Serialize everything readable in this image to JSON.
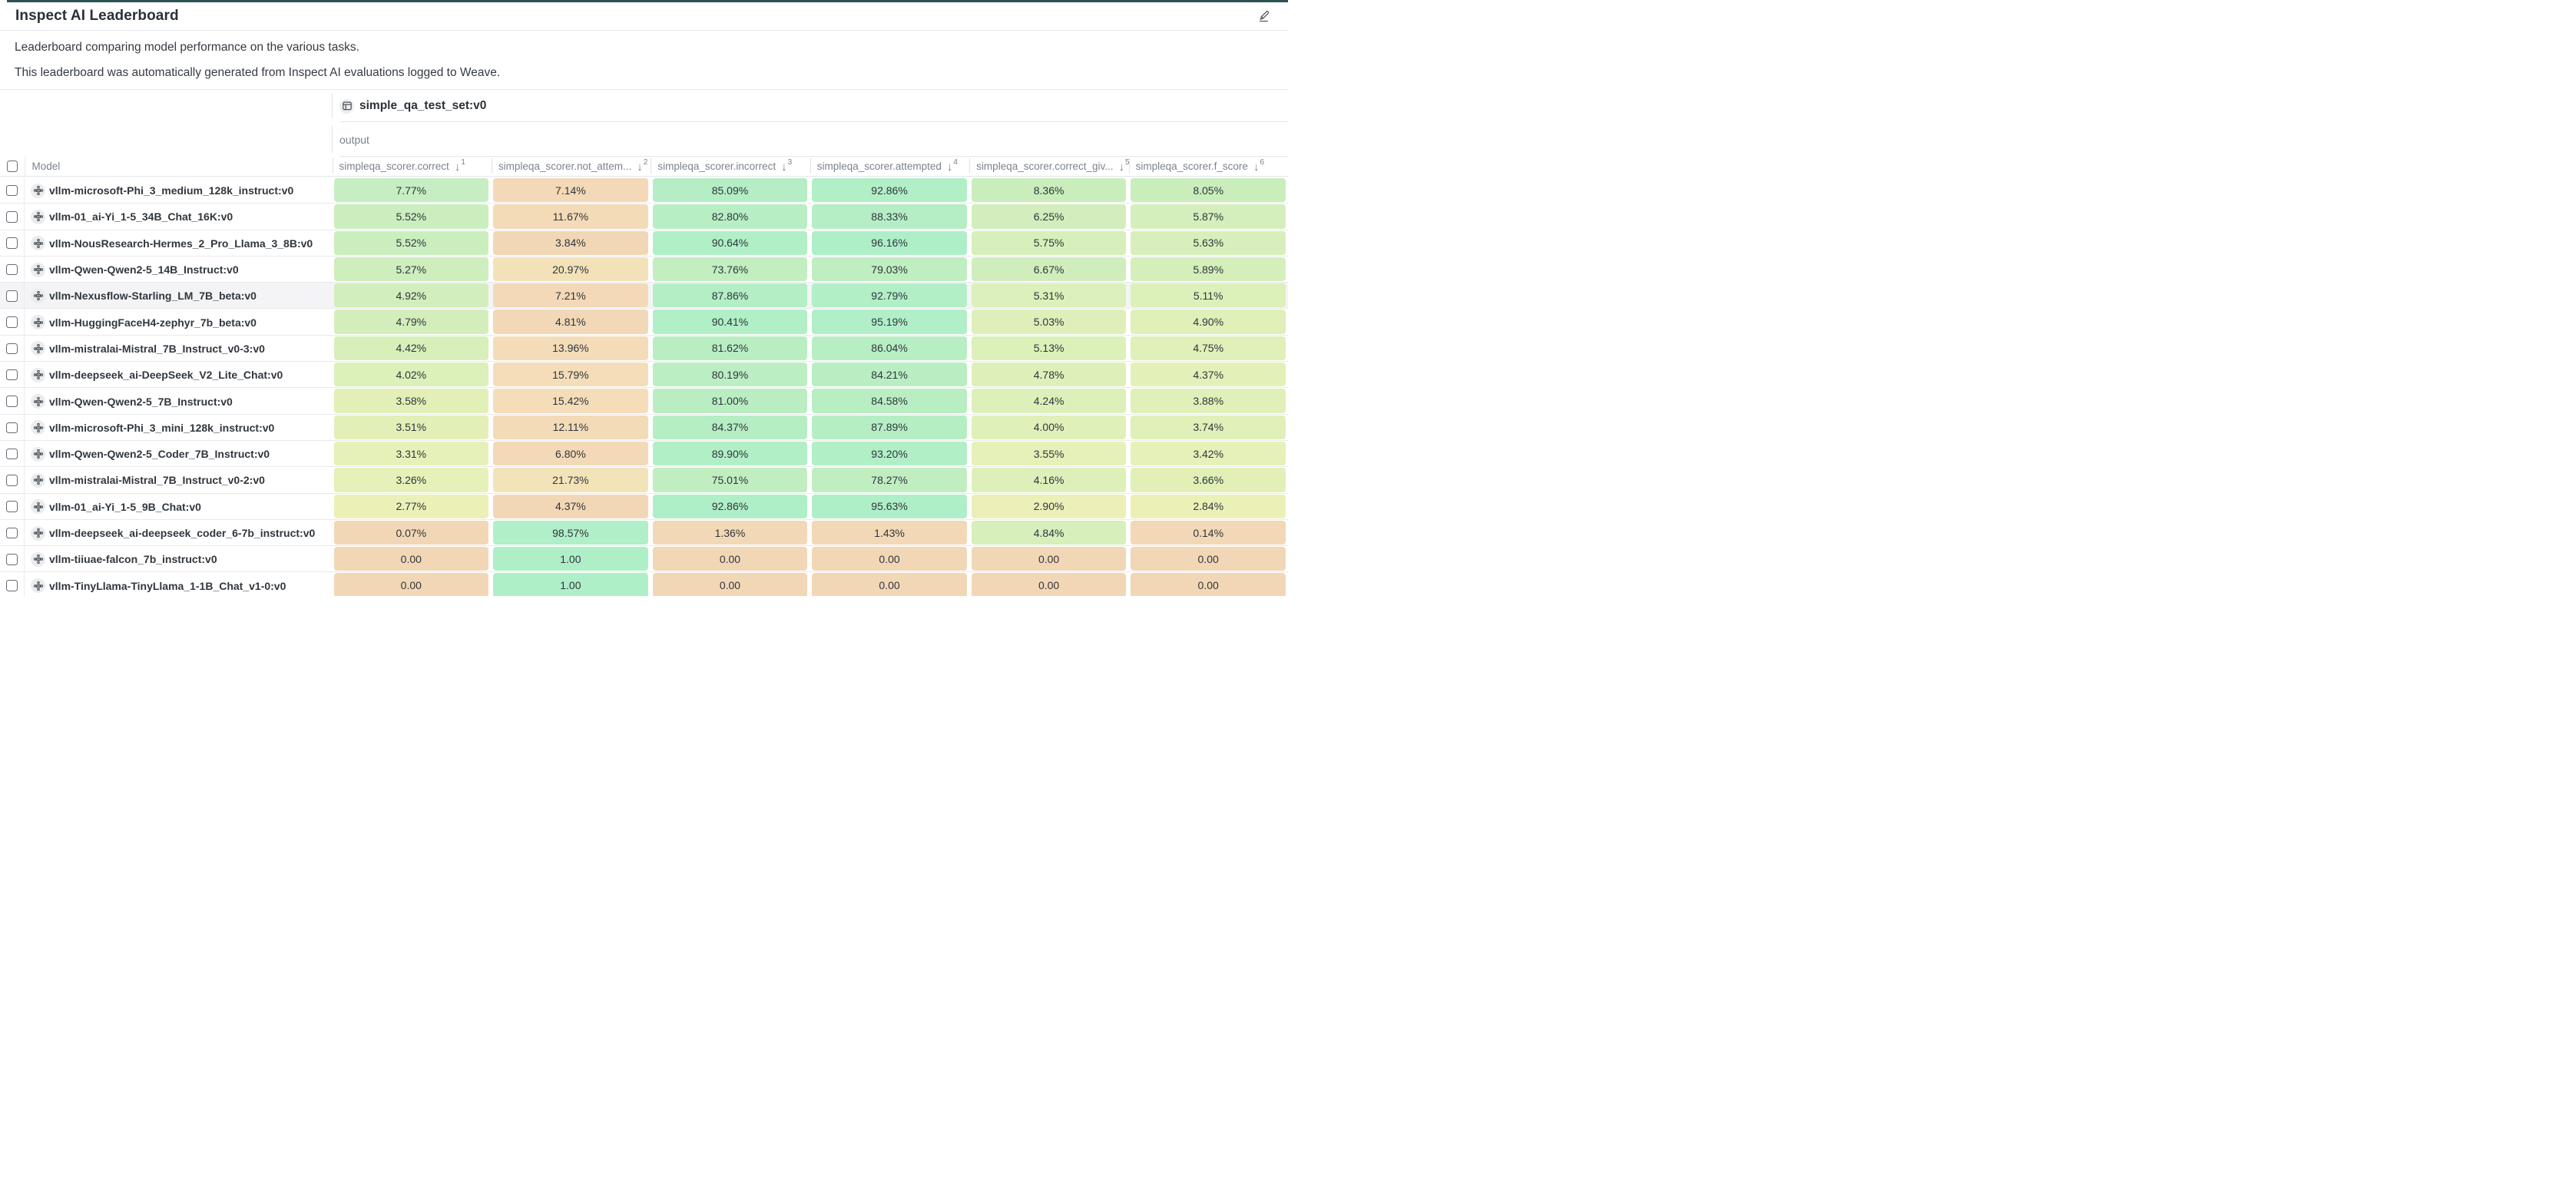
{
  "header": {
    "title": "Inspect AI Leaderboard",
    "edit_icon": "pencil-icon"
  },
  "intro": {
    "line1": "Leaderboard comparing model performance on the various tasks.",
    "line2": "This leaderboard was automatically generated from Inspect AI evaluations logged to Weave."
  },
  "table": {
    "group_header": {
      "icon": "dataset-icon",
      "label": "simple_qa_test_set:v0"
    },
    "output_label": "output",
    "model_header": "Model",
    "columns": [
      {
        "label": "simpleqa_scorer.correct",
        "sort_dir": "desc",
        "sort_order": "1"
      },
      {
        "label": "simpleqa_scorer.not_attem...",
        "sort_dir": "desc",
        "sort_order": "2"
      },
      {
        "label": "simpleqa_scorer.incorrect",
        "sort_dir": "desc",
        "sort_order": "3"
      },
      {
        "label": "simpleqa_scorer.attempted",
        "sort_dir": "desc",
        "sort_order": "4"
      },
      {
        "label": "simpleqa_scorer.correct_giv...",
        "sort_dir": "desc",
        "sort_order": "5"
      },
      {
        "label": "simpleqa_scorer.f_score",
        "sort_dir": "desc",
        "sort_order": "6"
      }
    ],
    "rows": [
      {
        "model": "vllm-microsoft-Phi_3_medium_128k_instruct:v0",
        "values": [
          "7.77%",
          "7.14%",
          "85.09%",
          "92.86%",
          "8.36%",
          "8.05%"
        ],
        "hover": false
      },
      {
        "model": "vllm-01_ai-Yi_1-5_34B_Chat_16K:v0",
        "values": [
          "5.52%",
          "11.67%",
          "82.80%",
          "88.33%",
          "6.25%",
          "5.87%"
        ],
        "hover": false
      },
      {
        "model": "vllm-NousResearch-Hermes_2_Pro_Llama_3_8B:v0",
        "values": [
          "5.52%",
          "3.84%",
          "90.64%",
          "96.16%",
          "5.75%",
          "5.63%"
        ],
        "hover": false
      },
      {
        "model": "vllm-Qwen-Qwen2-5_14B_Instruct:v0",
        "values": [
          "5.27%",
          "20.97%",
          "73.76%",
          "79.03%",
          "6.67%",
          "5.89%"
        ],
        "hover": false
      },
      {
        "model": "vllm-Nexusflow-Starling_LM_7B_beta:v0",
        "values": [
          "4.92%",
          "7.21%",
          "87.86%",
          "92.79%",
          "5.31%",
          "5.11%"
        ],
        "hover": true
      },
      {
        "model": "vllm-HuggingFaceH4-zephyr_7b_beta:v0",
        "values": [
          "4.79%",
          "4.81%",
          "90.41%",
          "95.19%",
          "5.03%",
          "4.90%"
        ],
        "hover": false
      },
      {
        "model": "vllm-mistralai-Mistral_7B_Instruct_v0-3:v0",
        "values": [
          "4.42%",
          "13.96%",
          "81.62%",
          "86.04%",
          "5.13%",
          "4.75%"
        ],
        "hover": false
      },
      {
        "model": "vllm-deepseek_ai-DeepSeek_V2_Lite_Chat:v0",
        "values": [
          "4.02%",
          "15.79%",
          "80.19%",
          "84.21%",
          "4.78%",
          "4.37%"
        ],
        "hover": false
      },
      {
        "model": "vllm-Qwen-Qwen2-5_7B_Instruct:v0",
        "values": [
          "3.58%",
          "15.42%",
          "81.00%",
          "84.58%",
          "4.24%",
          "3.88%"
        ],
        "hover": false
      },
      {
        "model": "vllm-microsoft-Phi_3_mini_128k_instruct:v0",
        "values": [
          "3.51%",
          "12.11%",
          "84.37%",
          "87.89%",
          "4.00%",
          "3.74%"
        ],
        "hover": false
      },
      {
        "model": "vllm-Qwen-Qwen2-5_Coder_7B_Instruct:v0",
        "values": [
          "3.31%",
          "6.80%",
          "89.90%",
          "93.20%",
          "3.55%",
          "3.42%"
        ],
        "hover": false
      },
      {
        "model": "vllm-mistralai-Mistral_7B_Instruct_v0-2:v0",
        "values": [
          "3.26%",
          "21.73%",
          "75.01%",
          "78.27%",
          "4.16%",
          "3.66%"
        ],
        "hover": false
      },
      {
        "model": "vllm-01_ai-Yi_1-5_9B_Chat:v0",
        "values": [
          "2.77%",
          "4.37%",
          "92.86%",
          "95.63%",
          "2.90%",
          "2.84%"
        ],
        "hover": false
      },
      {
        "model": "vllm-deepseek_ai-deepseek_coder_6-7b_instruct:v0",
        "values": [
          "0.07%",
          "98.57%",
          "1.36%",
          "1.43%",
          "4.84%",
          "0.14%"
        ],
        "hover": false
      },
      {
        "model": "vllm-tiiuae-falcon_7b_instruct:v0",
        "values": [
          "0.00",
          "1.00",
          "0.00",
          "0.00",
          "0.00",
          "0.00"
        ],
        "hover": false
      },
      {
        "model": "vllm-TinyLlama-TinyLlama_1-1B_Chat_v1-0:v0",
        "values": [
          "0.00",
          "1.00",
          "0.00",
          "0.00",
          "0.00",
          "0.00"
        ],
        "hover": false
      }
    ]
  },
  "colors": {
    "topbar_accent": "#2b5355",
    "row_hover": "#f4f4f6",
    "cell_text": "#2f353c",
    "colormap_stops": [
      [
        0.0,
        242,
        215,
        182
      ],
      [
        0.12,
        244,
        221,
        184
      ],
      [
        0.25,
        242,
        232,
        186
      ],
      [
        0.37,
        234,
        241,
        183
      ],
      [
        0.5,
        222,
        240,
        185
      ],
      [
        0.65,
        209,
        238,
        188
      ],
      [
        0.8,
        193,
        238,
        192
      ],
      [
        0.92,
        181,
        238,
        196
      ],
      [
        1.0,
        175,
        239,
        200
      ]
    ],
    "cell_overrides": {
      "0,0": "#c6eec2",
      "0,4": "#c9eebc",
      "1,4": "#d3eebc",
      "2,4": "#d6efbb",
      "3,4": "#d0eebc",
      "4,4": "#dbf0ba",
      "5,4": "#deefba",
      "6,4": "#dcf0ba",
      "7,4": "#def0b9",
      "0,5": "#c9eebc",
      "1,5": "#d5efbc",
      "2,5": "#d8efbb",
      "3,5": "#d5efbb",
      "4,5": "#dcf0ba",
      "5,5": "#dff0b9",
      "6,5": "#e0f0b9",
      "7,5": "#e3f1b8"
    }
  }
}
